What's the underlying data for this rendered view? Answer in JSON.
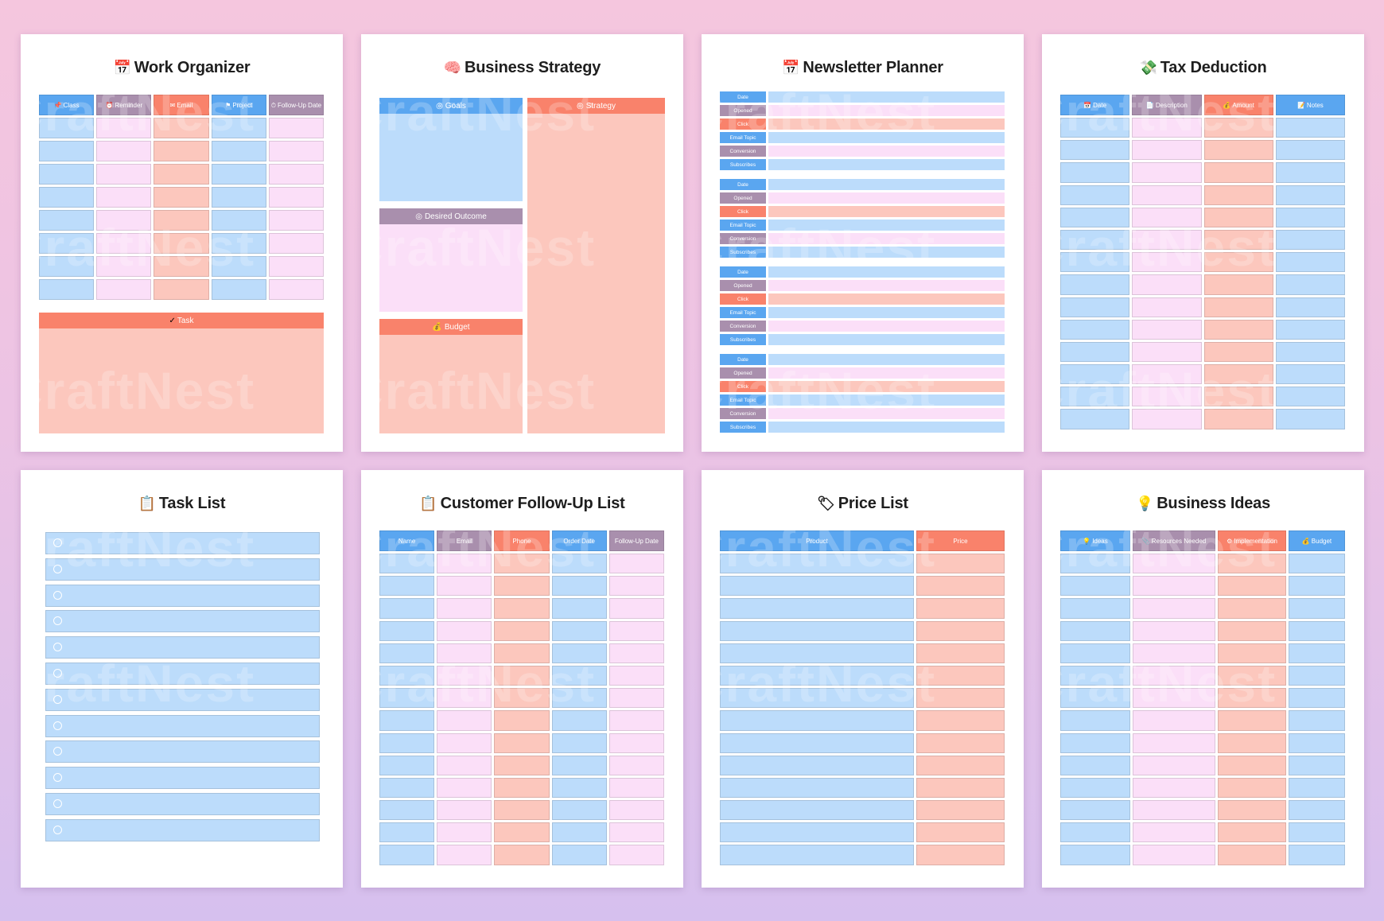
{
  "watermark": "CraftNest",
  "pages": {
    "work_organizer": {
      "title": "Work Organizer",
      "icon": "calendar-icon",
      "icon_glyph": "📅",
      "columns": [
        "Class",
        "Reminder",
        "Email",
        "Project",
        "Follow-Up Date"
      ],
      "column_icons": [
        "📌",
        "⏰",
        "✉",
        "⚑",
        "⏱"
      ],
      "task_label": "Task",
      "task_icon": "✓"
    },
    "business_strategy": {
      "title": "Business Strategy",
      "icon": "brain-icon",
      "icon_glyph": "🧠",
      "goals_label": "Goals",
      "strategy_label": "Strategy",
      "desired_outcome_label": "Desired Outcome",
      "budget_label": "Budget",
      "section_icons": {
        "goals": "◎",
        "strategy": "◎",
        "desired_outcome": "◎",
        "budget": "💰"
      }
    },
    "newsletter_planner": {
      "title": "Newsletter Planner",
      "icon": "calendar-icon",
      "icon_glyph": "📅",
      "row_labels": [
        "Date",
        "Opened",
        "Click",
        "Email Topic",
        "Conversion",
        "Subscribes"
      ]
    },
    "tax_deduction": {
      "title": "Tax Deduction",
      "icon": "money-icon",
      "icon_glyph": "💸",
      "columns": [
        "Date",
        "Description",
        "Amount",
        "Notes"
      ],
      "column_icons": [
        "📅",
        "📄",
        "💰",
        "📝"
      ]
    },
    "task_list": {
      "title": "Task List",
      "icon": "clipboard-icon",
      "icon_glyph": "📋"
    },
    "customer_follow_up": {
      "title": "Customer Follow-Up List",
      "icon": "clipboard-icon",
      "icon_glyph": "📋",
      "columns": [
        "Name",
        "Email",
        "Phone",
        "Order Date",
        "Follow-Up Date"
      ]
    },
    "price_list": {
      "title": "Price List",
      "icon": "tag-icon",
      "icon_glyph": "🏷",
      "columns": [
        "Product",
        "Price"
      ]
    },
    "business_ideas": {
      "title": "Business Ideas",
      "icon": "lightbulb-icon",
      "icon_glyph": "💡",
      "columns": [
        "Ideas",
        "Resources Needed",
        "Implementation",
        "Budget"
      ],
      "column_icons": [
        "💡",
        "📎",
        "⚙",
        "💰"
      ]
    }
  },
  "colors": {
    "blue": "#bcdcfb",
    "pink": "#fbdff8",
    "peach": "#fcc7bd",
    "header_blue": "#5aa6f0",
    "header_mauve": "#a98fad",
    "header_salmon": "#f9826b"
  }
}
